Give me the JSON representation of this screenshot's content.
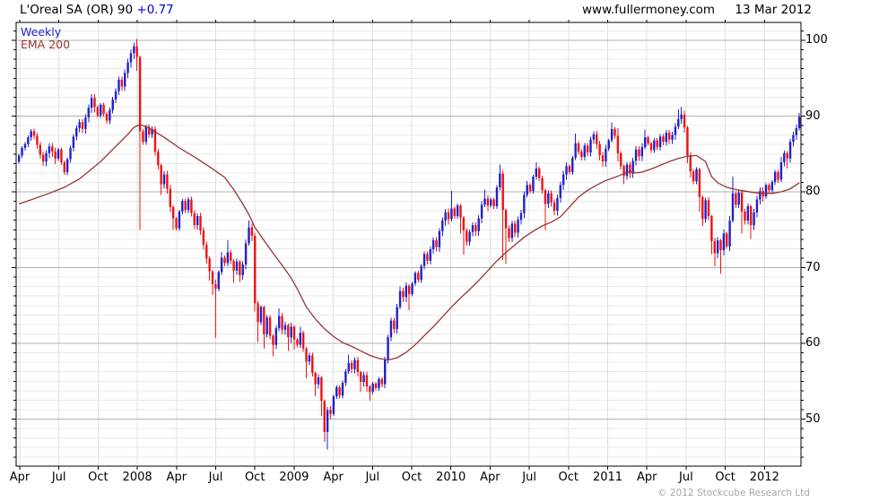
{
  "header": {
    "title_main": "L'Oreal SA (OR) 90 ",
    "title_change": "+0.77",
    "website": "www.fullermoney.com",
    "date": "13 Mar 2012"
  },
  "legend": {
    "series": "Weekly",
    "overlay": "EMA 200"
  },
  "footer": {
    "copyright": "© 2012 Stockcube Research Ltd"
  },
  "colors": {
    "up": "#2020cc",
    "down": "#ee1212",
    "ema": "#993333",
    "grid_minor": "#e8e8e8",
    "grid_vert": "#e0e0e0",
    "grid_major": "#b0b0b0",
    "axis": "#000000",
    "title_change": "#0000cc",
    "copyright": "#a6a6a6"
  },
  "chart_data": {
    "type": "candlestick",
    "title": "L'Oreal SA (OR) weekly candlestick chart with 200-period EMA",
    "interval": "Weekly",
    "overlay": "EMA 200",
    "y_axis": {
      "tick_labels": [
        100,
        90,
        80,
        70,
        60,
        50
      ],
      "min": 43.8,
      "max": 102.4,
      "minor_step": 1.25,
      "major_step": 10
    },
    "x_axis": {
      "tick_labels": [
        "Apr",
        "Jul",
        "Oct",
        "2008",
        "Apr",
        "Jul",
        "Oct",
        "2009",
        "Apr",
        "Jul",
        "Oct",
        "2010",
        "Apr",
        "Jul",
        "Oct",
        "2011",
        "Apr",
        "Jul",
        "Oct",
        "2012"
      ]
    },
    "first_open": 84.0,
    "closes": [
      84.8,
      85.8,
      86.3,
      87.2,
      88.0,
      87.4,
      86.2,
      84.9,
      84.0,
      85.1,
      86.0,
      85.3,
      84.4,
      85.6,
      83.9,
      82.6,
      84.3,
      85.8,
      87.3,
      88.4,
      89.2,
      88.3,
      89.8,
      91.1,
      92.4,
      91.2,
      90.1,
      91.5,
      90.3,
      89.4,
      90.8,
      92.2,
      93.3,
      94.8,
      93.9,
      95.7,
      97.1,
      98.3,
      99.2,
      97.8,
      88.0,
      86.6,
      88.6,
      87.6,
      88.3,
      85.3,
      83.5,
      81.0,
      82.3,
      80.4,
      78.0,
      76.5,
      75.2,
      77.4,
      78.8,
      77.6,
      79.0,
      77.2,
      75.6,
      76.8,
      74.9,
      73.0,
      71.2,
      69.5,
      67.8,
      67.2,
      69.4,
      71.3,
      70.6,
      72.0,
      70.9,
      69.6,
      70.8,
      69.0,
      70.4,
      73.2,
      75.3,
      74.2,
      65.3,
      62.8,
      64.8,
      61.2,
      63.4,
      61.0,
      59.8,
      62.0,
      63.6,
      61.8,
      62.4,
      60.8,
      62.2,
      60.5,
      59.8,
      61.4,
      59.3,
      57.6,
      58.4,
      56.1,
      54.6,
      55.5,
      52.4,
      48.3,
      51.2,
      50.7,
      53.0,
      54.2,
      53.1,
      54.8,
      56.3,
      57.4,
      56.6,
      57.8,
      56.2,
      54.9,
      55.8,
      54.3,
      53.6,
      54.7,
      54.1,
      55.3,
      54.6,
      57.8,
      60.8,
      63.0,
      61.9,
      64.8,
      66.9,
      66.1,
      67.6,
      66.5,
      67.9,
      69.3,
      68.4,
      70.2,
      71.8,
      70.9,
      72.4,
      73.6,
      72.7,
      74.8,
      76.2,
      77.3,
      76.4,
      77.8,
      76.8,
      78.2,
      76.6,
      74.9,
      73.4,
      74.7,
      75.6,
      74.8,
      76.5,
      78.3,
      79.1,
      78.2,
      79.0,
      78.1,
      80.6,
      82.4,
      77.6,
      75.2,
      73.9,
      75.8,
      74.6,
      76.3,
      77.2,
      79.6,
      80.9,
      80.1,
      82.0,
      83.1,
      81.8,
      80.2,
      78.4,
      79.8,
      78.6,
      77.5,
      79.2,
      80.9,
      82.3,
      83.4,
      82.6,
      84.5,
      86.4,
      85.3,
      84.6,
      86.1,
      85.2,
      86.9,
      87.6,
      86.3,
      84.8,
      84.0,
      85.7,
      86.8,
      88.3,
      87.4,
      85.1,
      83.4,
      82.1,
      83.6,
      82.4,
      84.1,
      85.6,
      84.7,
      85.9,
      87.2,
      86.4,
      85.5,
      86.8,
      85.9,
      87.3,
      86.6,
      87.8,
      86.9,
      87.5,
      88.6,
      89.6,
      90.2,
      88.5,
      84.8,
      82.7,
      81.4,
      83.0,
      79.3,
      76.4,
      78.9,
      76.8,
      73.5,
      71.9,
      73.6,
      72.3,
      74.5,
      72.8,
      76.2,
      79.8,
      78.3,
      79.9,
      77.4,
      76.2,
      78.1,
      75.6,
      77.3,
      79.0,
      80.1,
      79.4,
      80.9,
      80.2,
      81.3,
      82.6,
      81.6,
      83.9,
      85.1,
      84.4,
      86.6,
      87.5,
      88.4,
      89.9
    ],
    "wick_base": 0.3,
    "wick_var": 0.45,
    "wick_overrides": {
      "39": [
        100.2,
        96.0
      ],
      "40": [
        98.0,
        75.0
      ],
      "47": [
        83.7,
        79.6
      ],
      "51": [
        78.2,
        75.0
      ],
      "63": [
        71.5,
        68.3
      ],
      "64": [
        69.7,
        66.4
      ],
      "65": [
        68.4,
        60.7
      ],
      "67": [
        72.1,
        69.0
      ],
      "69": [
        73.6,
        70.2
      ],
      "71": [
        71.1,
        68.0
      ],
      "73": [
        71.0,
        68.1
      ],
      "76": [
        76.2,
        72.9
      ],
      "78": [
        74.6,
        64.2
      ],
      "79": [
        65.6,
        60.2
      ],
      "81": [
        65.0,
        59.3
      ],
      "84": [
        61.2,
        58.3
      ],
      "86": [
        64.6,
        61.6
      ],
      "89": [
        62.6,
        59.0
      ],
      "91": [
        62.4,
        59.2
      ],
      "93": [
        62.2,
        59.4
      ],
      "95": [
        59.5,
        55.4
      ],
      "98": [
        56.3,
        53.0
      ],
      "100": [
        55.7,
        50.4
      ],
      "101": [
        52.6,
        47.0
      ],
      "102": [
        51.6,
        46.0
      ],
      "109": [
        58.5,
        56.0
      ],
      "113": [
        56.4,
        53.6
      ],
      "116": [
        54.5,
        52.4
      ],
      "121": [
        58.2,
        54.1
      ],
      "126": [
        67.5,
        64.5
      ],
      "129": [
        67.8,
        64.4
      ],
      "143": [
        80.1,
        76.1
      ],
      "146": [
        78.4,
        74.5
      ],
      "147": [
        76.8,
        71.7
      ],
      "154": [
        80.3,
        78.0
      ],
      "159": [
        83.6,
        80.2
      ],
      "160": [
        82.8,
        71.0
      ],
      "161": [
        77.8,
        70.5
      ],
      "168": [
        81.4,
        79.3
      ],
      "171": [
        83.9,
        81.6
      ],
      "174": [
        80.4,
        75.0
      ],
      "184": [
        87.7,
        84.2
      ],
      "196": [
        89.2,
        86.5
      ],
      "198": [
        88.4,
        84.0
      ],
      "200": [
        83.6,
        81.0
      ],
      "207": [
        88.2,
        85.6
      ],
      "218": [
        90.9,
        88.3
      ],
      "219": [
        91.2,
        89.0
      ],
      "221": [
        88.7,
        83.8
      ],
      "222": [
        85.2,
        81.9
      ],
      "225": [
        83.2,
        77.4
      ],
      "226": [
        79.5,
        75.5
      ],
      "229": [
        76.9,
        71.8
      ],
      "230": [
        73.9,
        70.2
      ],
      "232": [
        73.8,
        69.2
      ],
      "235": [
        76.8,
        72.2
      ],
      "236": [
        82.0,
        75.9
      ],
      "239": [
        80.1,
        74.5
      ],
      "242": [
        78.3,
        73.8
      ],
      "252": [
        84.6,
        81.3
      ],
      "254": [
        85.4,
        83.1
      ],
      "258": [
        90.4,
        88.1
      ]
    },
    "ema200": {
      "points": [
        [
          0,
          78.4
        ],
        [
          5,
          79.1
        ],
        [
          10,
          79.8
        ],
        [
          15,
          80.6
        ],
        [
          20,
          81.7
        ],
        [
          24,
          83.0
        ],
        [
          27,
          84.0
        ],
        [
          30,
          85.2
        ],
        [
          33,
          86.4
        ],
        [
          36,
          87.6
        ],
        [
          38,
          88.5
        ],
        [
          40,
          88.9
        ],
        [
          43,
          88.4
        ],
        [
          48,
          87.2
        ],
        [
          53,
          85.8
        ],
        [
          58,
          84.6
        ],
        [
          63,
          83.3
        ],
        [
          68,
          81.9
        ],
        [
          71,
          80.3
        ],
        [
          74,
          78.4
        ],
        [
          76,
          77.0
        ],
        [
          78,
          75.3
        ],
        [
          81,
          73.6
        ],
        [
          84,
          71.9
        ],
        [
          87,
          70.3
        ],
        [
          90,
          68.6
        ],
        [
          92,
          67.2
        ],
        [
          95,
          64.8
        ],
        [
          98,
          63.2
        ],
        [
          101,
          61.9
        ],
        [
          104,
          60.9
        ],
        [
          107,
          60.1
        ],
        [
          110,
          59.6
        ],
        [
          113,
          59.0
        ],
        [
          116,
          58.4
        ],
        [
          119,
          58.0
        ],
        [
          122,
          57.8
        ],
        [
          125,
          58.1
        ],
        [
          128,
          58.8
        ],
        [
          131,
          59.8
        ],
        [
          134,
          61.0
        ],
        [
          137,
          62.2
        ],
        [
          140,
          63.5
        ],
        [
          143,
          64.8
        ],
        [
          146,
          66.0
        ],
        [
          149,
          67.1
        ],
        [
          152,
          68.3
        ],
        [
          155,
          69.6
        ],
        [
          158,
          70.9
        ],
        [
          161,
          72.0
        ],
        [
          164,
          73.0
        ],
        [
          167,
          74.0
        ],
        [
          170,
          74.8
        ],
        [
          173,
          75.5
        ],
        [
          176,
          76.0
        ],
        [
          179,
          76.7
        ],
        [
          182,
          78.0
        ],
        [
          185,
          79.3
        ],
        [
          188,
          80.2
        ],
        [
          191,
          80.9
        ],
        [
          194,
          81.5
        ],
        [
          197,
          81.9
        ],
        [
          200,
          82.4
        ],
        [
          202,
          82.7
        ],
        [
          204,
          82.5
        ],
        [
          206,
          82.6
        ],
        [
          209,
          83.0
        ],
        [
          212,
          83.5
        ],
        [
          215,
          84.0
        ],
        [
          218,
          84.4
        ],
        [
          221,
          84.7
        ],
        [
          224,
          84.8
        ],
        [
          227,
          84.0
        ],
        [
          229,
          82.0
        ],
        [
          231,
          81.2
        ],
        [
          234,
          80.6
        ],
        [
          237,
          80.3
        ],
        [
          240,
          80.1
        ],
        [
          243,
          79.9
        ],
        [
          246,
          79.8
        ],
        [
          249,
          79.8
        ],
        [
          252,
          80.0
        ],
        [
          255,
          80.4
        ],
        [
          258,
          81.2
        ]
      ]
    }
  }
}
